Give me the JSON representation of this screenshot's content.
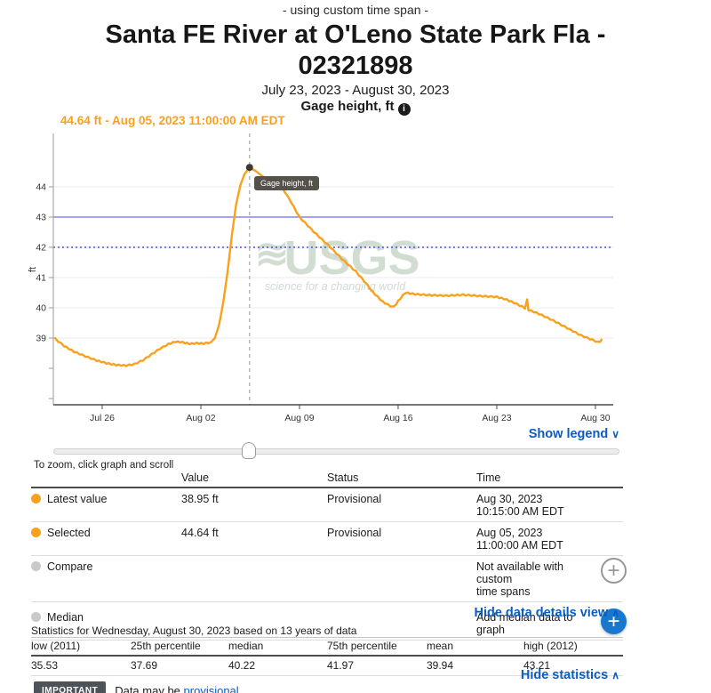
{
  "header": {
    "note": "- using custom time span -",
    "title": "Santa FE River at O'Leno State Park Fla - 02321898",
    "date_range": "July 23, 2023 - August 30, 2023",
    "parameter": "Gage height, ft",
    "info_icon": "info-icon"
  },
  "annotation": "44.64 ft - Aug 05, 2023 11:00:00 AM EDT",
  "chart_data": {
    "type": "line",
    "title": "Gage height, ft",
    "ylabel": "ft",
    "ylim": [
      36.8,
      45.8
    ],
    "yticks_labeled": [
      39,
      40,
      41,
      42,
      43,
      44
    ],
    "yticks_minor": [
      37,
      38
    ],
    "grid": "horizontal only",
    "x_unit": "days since Jul 23, 2023 00:00 EDT",
    "xticks": [
      {
        "day": 3,
        "label": "Jul 26"
      },
      {
        "day": 10,
        "label": "Aug 02"
      },
      {
        "day": 17,
        "label": "Aug 09"
      },
      {
        "day": 24,
        "label": "Aug 16"
      },
      {
        "day": 31,
        "label": "Aug 23"
      },
      {
        "day": 38,
        "label": "Aug 30"
      }
    ],
    "reference_lines": [
      {
        "value": 43,
        "style": "solid",
        "color": "#8286EE"
      },
      {
        "value": 42,
        "style": "dotted",
        "color": "#4255DF"
      }
    ],
    "selected_point": {
      "day": 13.458,
      "value": 44.64,
      "tooltip": "Gage height, ft",
      "time": "Aug 05, 2023 11:00:00 AM EDT"
    },
    "series": [
      {
        "name": "Gage height, ft",
        "color": "#F9A11C",
        "points": [
          [
            -0.35,
            38.98
          ],
          [
            0.3,
            38.74
          ],
          [
            1.0,
            38.55
          ],
          [
            1.8,
            38.4
          ],
          [
            2.6,
            38.26
          ],
          [
            3.3,
            38.17
          ],
          [
            4.0,
            38.11
          ],
          [
            4.7,
            38.09
          ],
          [
            5.3,
            38.14
          ],
          [
            5.9,
            38.27
          ],
          [
            6.5,
            38.46
          ],
          [
            7.1,
            38.65
          ],
          [
            7.7,
            38.8
          ],
          [
            8.2,
            38.88
          ],
          [
            8.7,
            38.86
          ],
          [
            9.2,
            38.81
          ],
          [
            9.7,
            38.83
          ],
          [
            10.2,
            38.82
          ],
          [
            10.7,
            38.86
          ],
          [
            11.0,
            39.0
          ],
          [
            11.3,
            39.45
          ],
          [
            11.6,
            40.2
          ],
          [
            11.9,
            41.2
          ],
          [
            12.2,
            42.4
          ],
          [
            12.5,
            43.4
          ],
          [
            12.8,
            44.05
          ],
          [
            13.1,
            44.42
          ],
          [
            13.458,
            44.64
          ],
          [
            13.9,
            44.52
          ],
          [
            14.4,
            44.34
          ],
          [
            15.0,
            44.18
          ],
          [
            15.74,
            44.0
          ],
          [
            16.4,
            43.5
          ],
          [
            17.0,
            43.0
          ],
          [
            18.0,
            42.52
          ],
          [
            19.2,
            42.0
          ],
          [
            20.0,
            41.62
          ],
          [
            21.0,
            41.2
          ],
          [
            21.6,
            40.88
          ],
          [
            22.2,
            40.52
          ],
          [
            22.9,
            40.2
          ],
          [
            23.45,
            40.06
          ],
          [
            23.7,
            40.03
          ],
          [
            24.0,
            40.22
          ],
          [
            24.5,
            40.5
          ],
          [
            25.2,
            40.45
          ],
          [
            26.2,
            40.42
          ],
          [
            27.4,
            40.4
          ],
          [
            28.6,
            40.43
          ],
          [
            29.8,
            40.39
          ],
          [
            31.0,
            40.36
          ],
          [
            31.7,
            40.27
          ],
          [
            32.4,
            40.13
          ],
          [
            33.0,
            39.99
          ],
          [
            33.15,
            40.26
          ],
          [
            33.25,
            39.93
          ],
          [
            34.0,
            39.8
          ],
          [
            35.0,
            39.58
          ],
          [
            36.0,
            39.33
          ],
          [
            37.0,
            39.08
          ],
          [
            37.8,
            38.94
          ],
          [
            38.2,
            38.86
          ],
          [
            38.33,
            38.89
          ],
          [
            38.43,
            38.95
          ]
        ]
      }
    ],
    "watermark": {
      "waves": "≋",
      "text": "USGS",
      "tagline": "science for a changing world",
      "color": "#cbd8cb"
    }
  },
  "legend_toggle": {
    "label": "Show legend",
    "chevron": "∨"
  },
  "zoom_hint": "To zoom, click graph and scroll",
  "details_table": {
    "columns": {
      "value": "Value",
      "status": "Status",
      "time": "Time"
    },
    "rows": [
      {
        "label": "Latest value",
        "marker": "orange",
        "value": "38.95 ft",
        "status": "Provisional",
        "time1": "Aug 30, 2023",
        "time2": "10:15:00 AM EDT"
      },
      {
        "label": "Selected",
        "marker": "orange",
        "value": "44.64 ft",
        "status": "Provisional",
        "time1": "Aug 05, 2023",
        "time2": "11:00:00 AM EDT"
      },
      {
        "label": "Compare",
        "marker": "gray",
        "value": "",
        "status": "",
        "time1": "Not available with custom",
        "time2": "time spans",
        "action_icon": "add-compare"
      },
      {
        "label": "Median",
        "marker": "gray",
        "value": "",
        "status": "",
        "time1": "Add median data to graph",
        "time2": "",
        "action_icon": "add-median"
      }
    ]
  },
  "hide_details": {
    "label": "Hide data details view",
    "chevron": "∧"
  },
  "statistics": {
    "caption": "Statistics for Wednesday, August 30, 2023 based on 13 years of data",
    "columns": [
      "low (2011)",
      "25th percentile",
      "median",
      "75th percentile",
      "mean",
      "high (2012)"
    ],
    "values": [
      "35.53",
      "37.69",
      "40.22",
      "41.97",
      "39.94",
      "43.21"
    ]
  },
  "hide_stats": {
    "label": "Hide statistics",
    "chevron": "∧"
  },
  "footer": {
    "badge": "IMPORTANT",
    "text": "Data may be ",
    "link": "provisional"
  }
}
